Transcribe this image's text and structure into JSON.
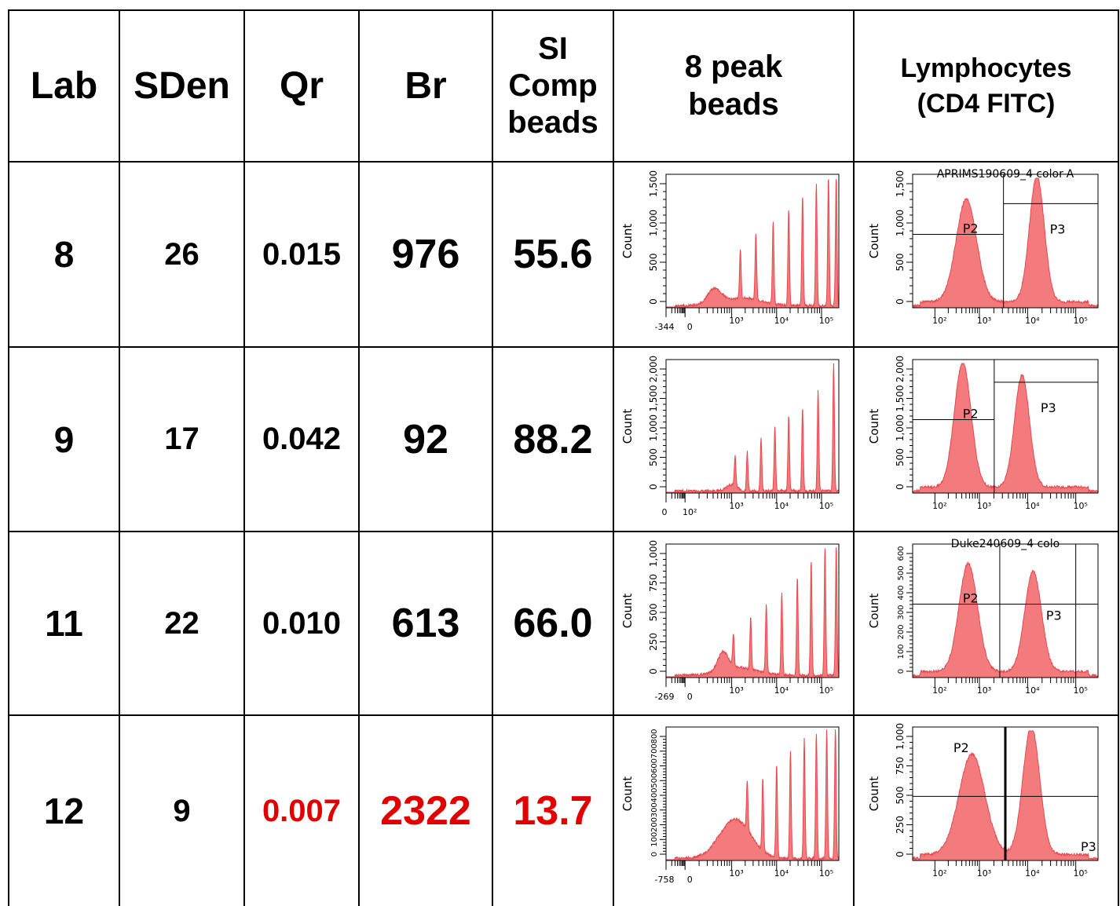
{
  "headers": {
    "lab": "Lab",
    "sden": "SDen",
    "qr": "Qr",
    "br": "Br",
    "si_line1": "SI",
    "si_line2": "Comp",
    "si_line3": "beads",
    "peak_line1": "8 peak",
    "peak_line2": "beads",
    "lymph_line1": "Lymphocytes",
    "lymph_line2": "(CD4 FITC)"
  },
  "rows": [
    {
      "lab": "8",
      "sden": "26",
      "qr": "0.015",
      "br": "976",
      "si": "55.6",
      "flag": false
    },
    {
      "lab": "9",
      "sden": "17",
      "qr": "0.042",
      "br": "92",
      "si": "88.2",
      "flag": false
    },
    {
      "lab": "11",
      "sden": "22",
      "qr": "0.010",
      "br": "613",
      "si": "66.0",
      "flag": false
    },
    {
      "lab": "12",
      "sden": "9",
      "qr": "0.007",
      "br": "2322",
      "si": "13.7",
      "flag": true
    }
  ],
  "colors": {
    "flag": "#e00000",
    "histogram": "#e8474c",
    "histogram_fill": "#f37b7e"
  },
  "bead_plots": [
    {
      "ylabel": "Count",
      "yticks": [
        "0",
        "500",
        "1,000",
        "1,500"
      ],
      "xticks": [
        "-344",
        "0",
        "10³",
        "10⁴",
        "10⁵"
      ]
    },
    {
      "ylabel": "Count",
      "yticks": [
        "0",
        "500",
        "1,000",
        "1,500",
        "2,000"
      ],
      "xticks": [
        "0",
        "10²",
        "10³",
        "10⁴",
        "10⁵"
      ]
    },
    {
      "ylabel": "Count",
      "yticks": [
        "0",
        "250",
        "500",
        "750",
        "1,000"
      ],
      "xticks": [
        "-269",
        "0",
        "10³",
        "10⁴",
        "10⁵"
      ]
    },
    {
      "ylabel": "Count",
      "yticks": [
        "0",
        "100",
        "200",
        "300",
        "400",
        "500",
        "600",
        "700",
        "800"
      ],
      "xticks": [
        "-758",
        "0",
        "10³",
        "10⁴",
        "10⁵"
      ]
    }
  ],
  "lymph_plots": [
    {
      "title": "APRIMS190609_4 color-A",
      "ylabel": "Count",
      "yticks": [
        "0",
        "500",
        "1,000",
        "1,500"
      ],
      "xticks": [
        "10²",
        "10³",
        "10⁴",
        "10⁵"
      ],
      "gates": [
        "P2",
        "P3"
      ]
    },
    {
      "title": "",
      "ylabel": "Count",
      "yticks": [
        "0",
        "500",
        "1,000",
        "1,500",
        "2,000"
      ],
      "xticks": [
        "10²",
        "10³",
        "10⁴",
        "10⁵"
      ],
      "gates": [
        "P2",
        "P3"
      ]
    },
    {
      "title": "Duke240609_4 colo",
      "ylabel": "Count",
      "yticks": [
        "0",
        "100",
        "200",
        "300",
        "400",
        "500",
        "600"
      ],
      "xticks": [
        "10²",
        "10³",
        "10⁴",
        "10⁵"
      ],
      "gates": [
        "P2",
        "P3"
      ]
    },
    {
      "title": "",
      "ylabel": "Count",
      "yticks": [
        "0",
        "250",
        "500",
        "750",
        "1,000"
      ],
      "xticks": [
        "10²",
        "10³",
        "10⁴",
        "10⁵"
      ],
      "gates": [
        "P2",
        "P3"
      ]
    }
  ]
}
